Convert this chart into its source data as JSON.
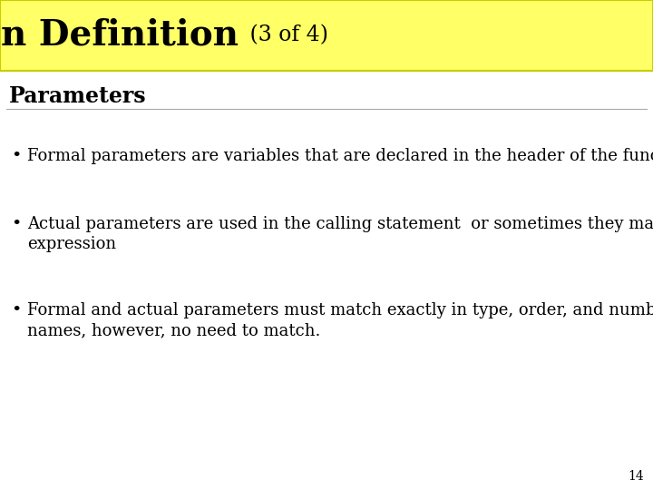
{
  "title_main": "Function Definition",
  "title_sub": " (3 of 4)",
  "title_bg": "#ffff66",
  "title_border": "#cccc00",
  "section_heading": "Parameters",
  "bullet1_line1": "Formal parameters are variables that are declared in the header of the function definition",
  "bullet2_line1": "Actual parameters are used in the calling statement  or sometimes they may be  an",
  "bullet2_line2": "expression",
  "bullet3_line1": "Formal and actual parameters must match exactly in type, order, and number.  Their",
  "bullet3_line2": "names, however, no need to match.",
  "bg_color": "#ffffff",
  "text_color": "#000000",
  "page_number": "14",
  "title_fontsize": 28,
  "subtitle_fontsize": 17,
  "heading_fontsize": 17,
  "bullet_fontsize": 13,
  "page_num_fontsize": 10
}
